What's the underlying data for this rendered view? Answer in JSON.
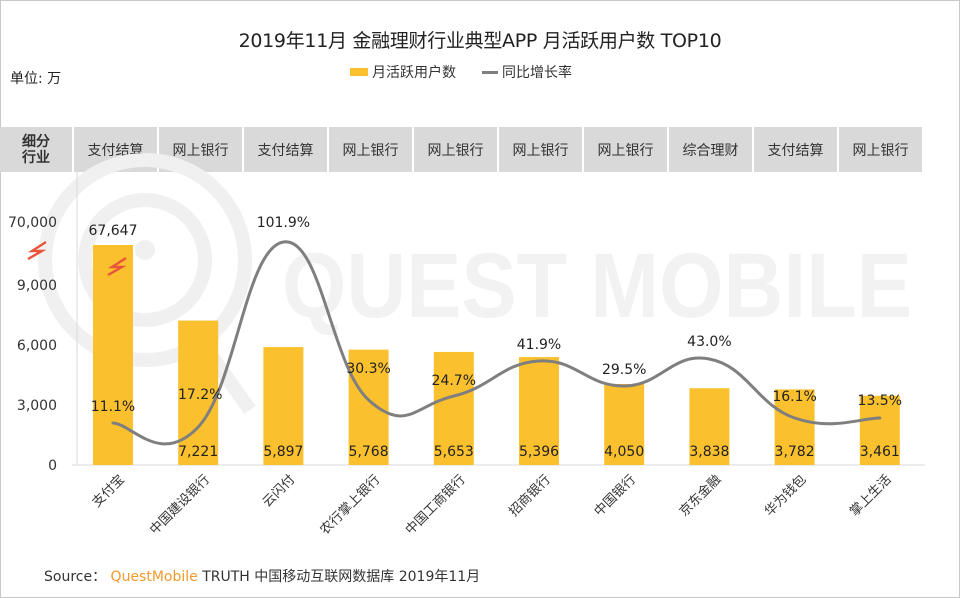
{
  "title": "2019年11月 金融理财行业典型APP 月活跃用户数 TOP10",
  "unit_label": "单位: 万",
  "legend": {
    "bar_label": "月活跃用户数",
    "line_label": "同比增长率"
  },
  "segment_header": "细分行业",
  "segment_header_lines": [
    "细分",
    "行业"
  ],
  "segments": [
    "支付结算",
    "网上银行",
    "支付结算",
    "网上银行",
    "网上银行",
    "网上银行",
    "网上银行",
    "综合理财",
    "支付结算",
    "网上银行"
  ],
  "watermark": "QUEST MOBILE",
  "source": {
    "prefix": "Source：",
    "brand": "QuestMobile",
    "suffix": "TRUTH 中国移动互联网数据库 2019年11月"
  },
  "colors": {
    "bar": "#FBC02D",
    "line": "#7F7F7F",
    "break_symbol": "#E8553A",
    "segment_bg": "#D9D9D9",
    "brand": "#F39A2A"
  },
  "chart_data": {
    "type": "bar",
    "title": "2019年11月 金融理财行业典型APP 月活跃用户数 TOP10",
    "xlabel": "",
    "ylabel": "单位: 万",
    "categories": [
      "支付宝",
      "中国建设银行",
      "云闪付",
      "农行掌上银行",
      "中国工商银行",
      "招商银行",
      "中国银行",
      "京东金融",
      "华为钱包",
      "掌上生活"
    ],
    "yticks": [
      "0",
      "3,000",
      "6,000",
      "9,000",
      "70,000"
    ],
    "ylim": [
      0,
      70000
    ],
    "axis_break": "between 9,000 and 70,000",
    "grid": false,
    "legend_position": "top-center",
    "series": [
      {
        "name": "月活跃用户数",
        "type": "bar",
        "values": [
          67647,
          7221,
          5897,
          5768,
          5653,
          5396,
          4050,
          3838,
          3782,
          3461
        ],
        "labels": [
          "67,647",
          "7,221",
          "5,897",
          "5,768",
          "5,653",
          "5,396",
          "4,050",
          "3,838",
          "3,782",
          "3,461"
        ]
      },
      {
        "name": "同比增长率",
        "type": "line",
        "smooth": true,
        "values": [
          11.1,
          17.2,
          101.9,
          30.3,
          24.7,
          41.9,
          29.5,
          43.0,
          16.1,
          13.5
        ],
        "labels": [
          "11.1%",
          "17.2%",
          "101.9%",
          "30.3%",
          "24.7%",
          "41.9%",
          "29.5%",
          "43.0%",
          "16.1%",
          "13.5%"
        ]
      }
    ]
  }
}
